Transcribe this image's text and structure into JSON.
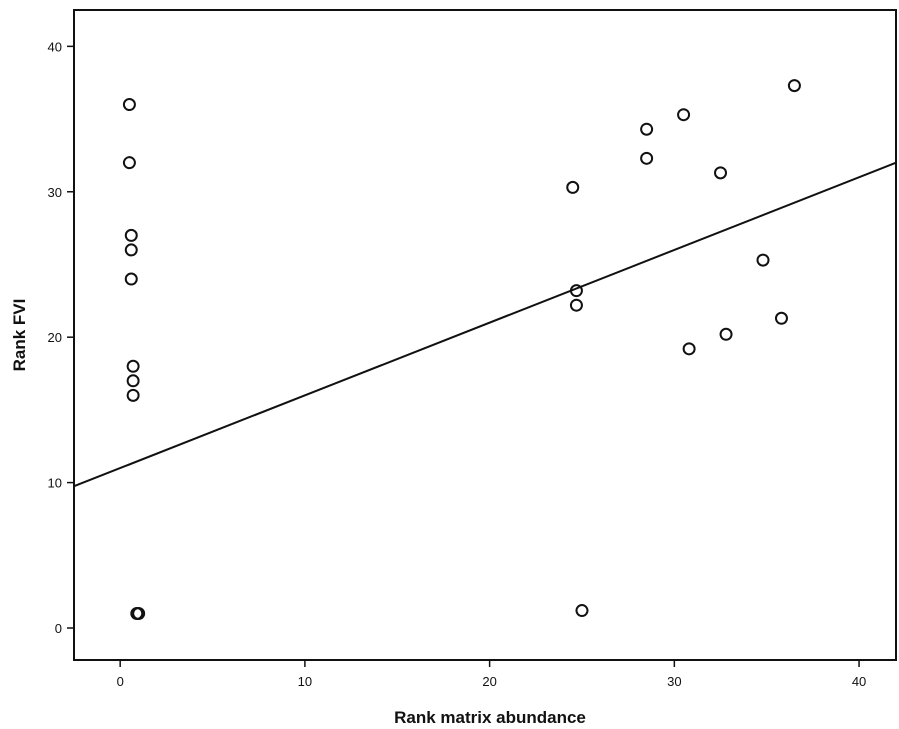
{
  "chart_data": {
    "type": "scatter",
    "xlabel": "Rank matrix abundance",
    "ylabel": "Rank FVI",
    "xlim": [
      -2.5,
      42
    ],
    "ylim": [
      -2.2,
      42.5
    ],
    "xticks": [
      0,
      10,
      20,
      30,
      40
    ],
    "yticks": [
      0,
      10,
      20,
      30,
      40
    ],
    "grid": false,
    "series": [
      {
        "marker": "open-circle",
        "color": "#111111",
        "points": [
          {
            "x": 0.5,
            "y": 36
          },
          {
            "x": 0.5,
            "y": 32
          },
          {
            "x": 0.6,
            "y": 27
          },
          {
            "x": 0.6,
            "y": 26
          },
          {
            "x": 0.6,
            "y": 24
          },
          {
            "x": 0.7,
            "y": 18
          },
          {
            "x": 0.7,
            "y": 17
          },
          {
            "x": 0.7,
            "y": 16
          },
          {
            "x": 0.9,
            "y": 1
          },
          {
            "x": 1.0,
            "y": 1
          },
          {
            "x": 24.5,
            "y": 30.3
          },
          {
            "x": 24.7,
            "y": 23.2
          },
          {
            "x": 24.7,
            "y": 22.2
          },
          {
            "x": 25.0,
            "y": 1.2
          },
          {
            "x": 28.5,
            "y": 34.3
          },
          {
            "x": 28.5,
            "y": 32.3
          },
          {
            "x": 30.5,
            "y": 35.3
          },
          {
            "x": 30.8,
            "y": 19.2
          },
          {
            "x": 32.5,
            "y": 31.3
          },
          {
            "x": 32.8,
            "y": 20.2
          },
          {
            "x": 34.8,
            "y": 25.3
          },
          {
            "x": 35.8,
            "y": 21.3
          },
          {
            "x": 36.5,
            "y": 37.3
          }
        ]
      }
    ],
    "fit_line": {
      "intercept": 11.0,
      "slope": 0.5
    }
  }
}
